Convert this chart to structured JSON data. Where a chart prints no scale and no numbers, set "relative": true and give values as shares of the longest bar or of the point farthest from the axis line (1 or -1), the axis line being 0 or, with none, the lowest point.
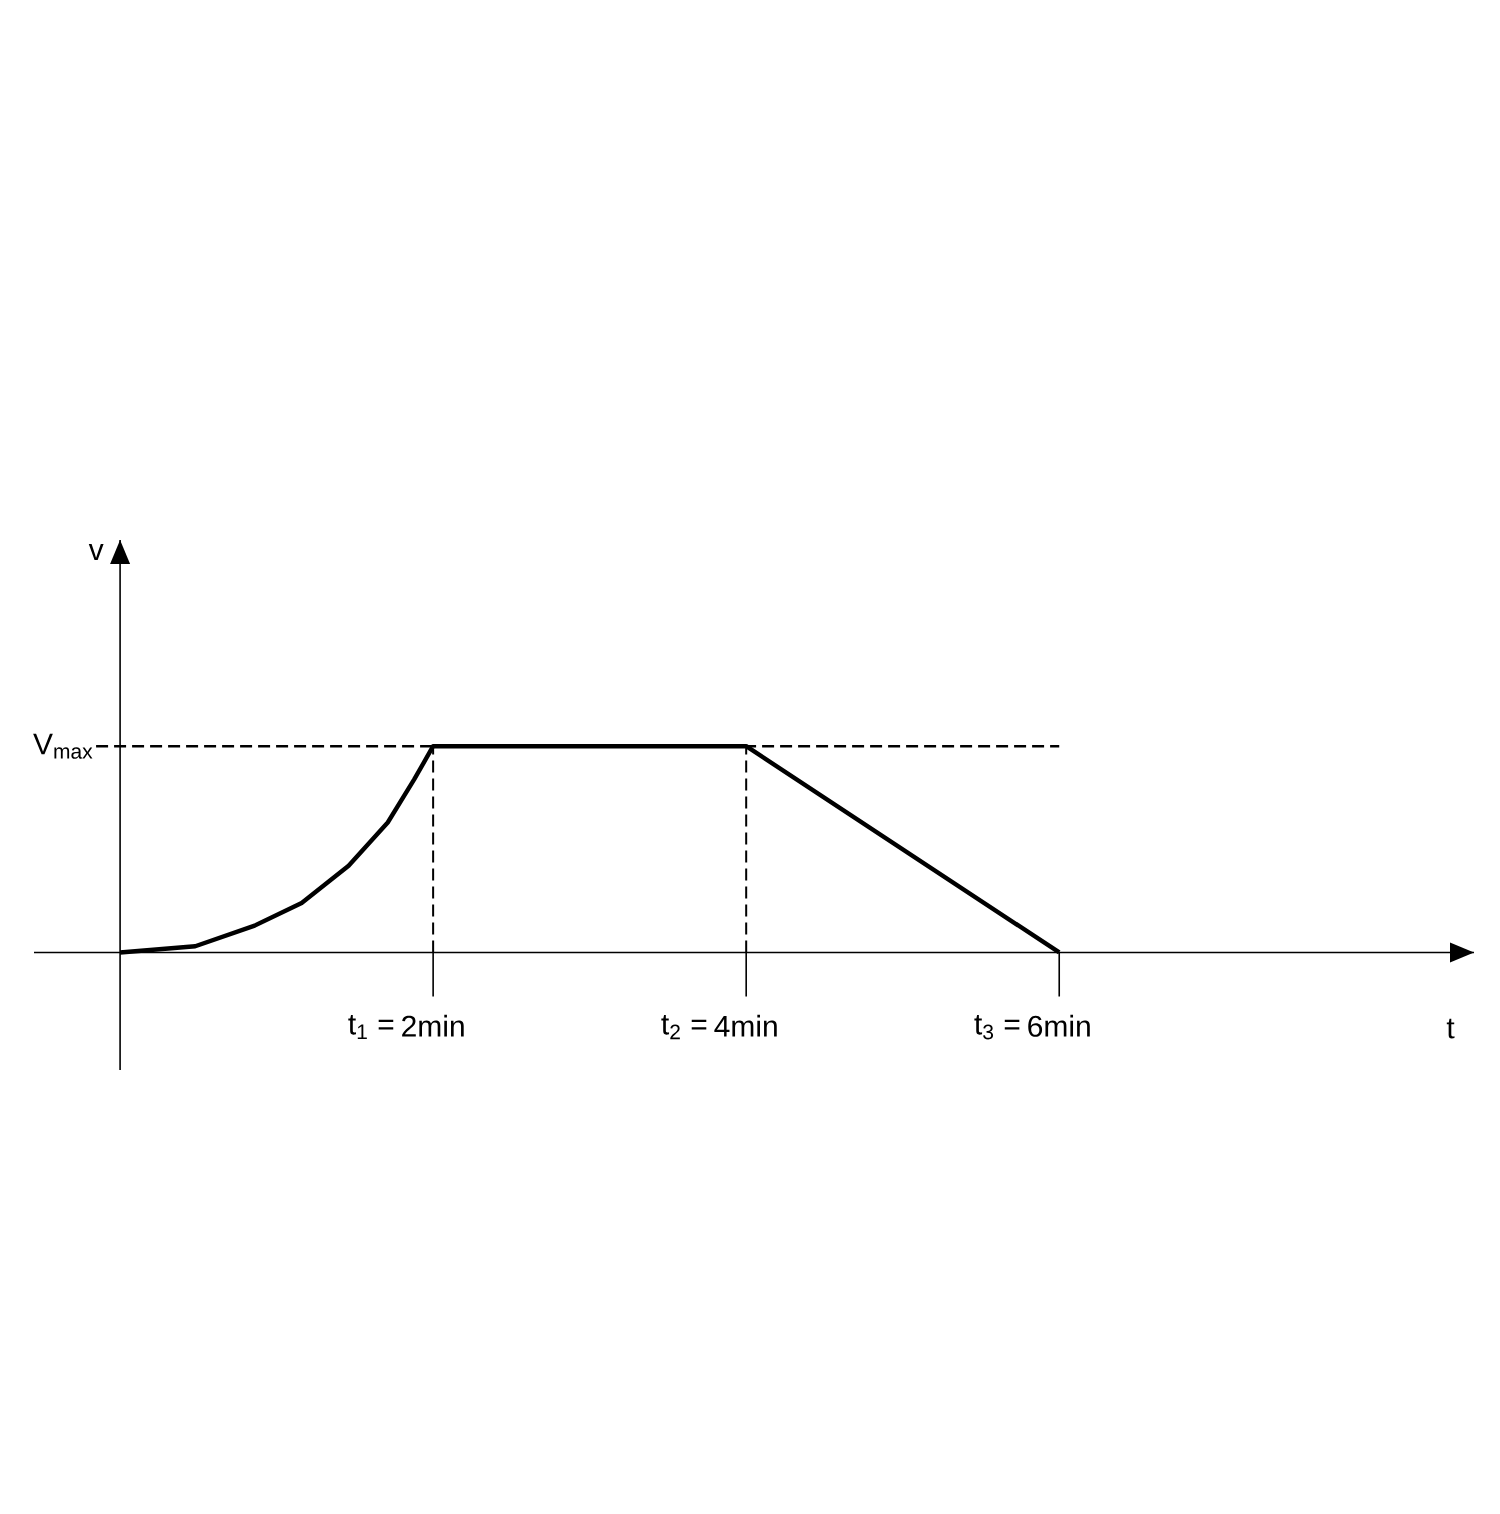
{
  "chart_data": {
    "type": "line",
    "xlabel": "t",
    "relative": true,
    "x": [
      0,
      0.48,
      0.86,
      1.16,
      1.46,
      1.71,
      1.88,
      2,
      4,
      6
    ],
    "values": [
      0,
      0.03,
      0.13,
      0.24,
      0.42,
      0.63,
      0.84,
      1,
      1,
      0
    ],
    "color": "#000000",
    "xlim": [
      -0.55,
      8.65
    ],
    "xticks": [
      {
        "value": 2,
        "label": "2min"
      },
      {
        "value": 4,
        "label": "4min"
      },
      {
        "value": 6,
        "label": "6min"
      }
    ],
    "annotations": [
      {
        "text": "t$_{1}$ =",
        "x": 2,
        "y": 0
      },
      {
        "text": "t$_{2}$ =",
        "x": 4,
        "y": 0
      },
      {
        "text": "t$_{3}$ =",
        "x": 6,
        "y": 0
      },
      "v"
    ],
    "ref_lines": [
      {
        "axis": "y",
        "value": 1,
        "label": "V$_{max}$",
        "line_style": "dashed"
      },
      {
        "axis": "x",
        "value": 2,
        "line_style": "dashed"
      },
      {
        "axis": "x",
        "value": 4,
        "line_style": "dashed"
      }
    ]
  }
}
